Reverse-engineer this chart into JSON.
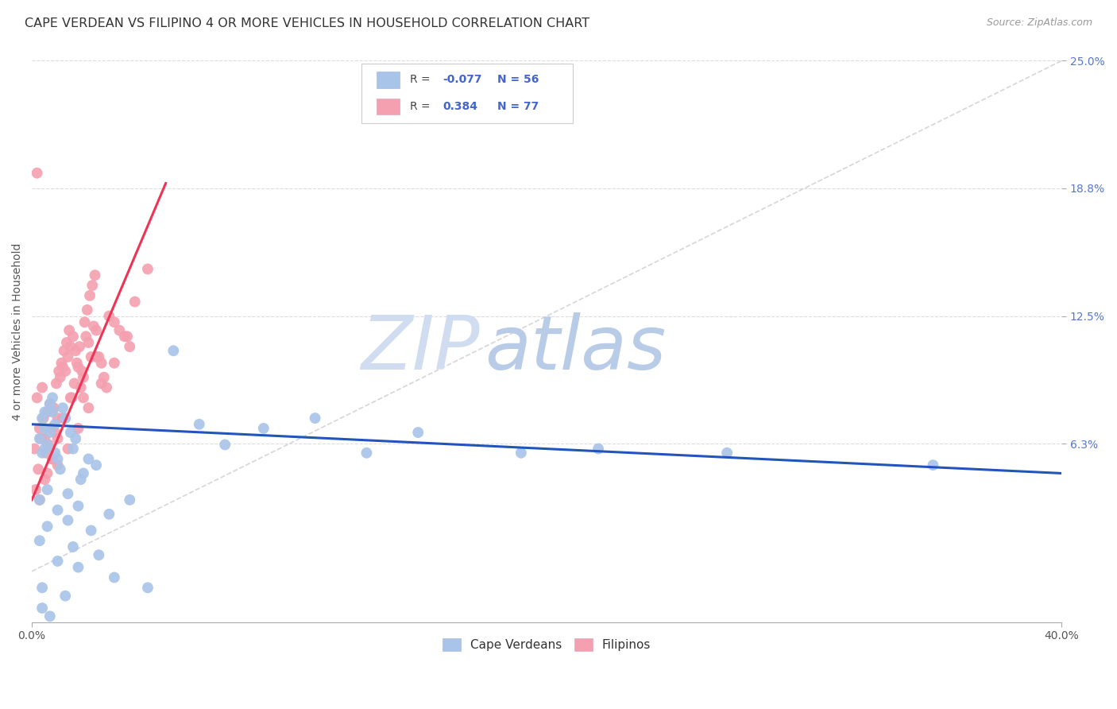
{
  "title": "CAPE VERDEAN VS FILIPINO 4 OR MORE VEHICLES IN HOUSEHOLD CORRELATION CHART",
  "source": "Source: ZipAtlas.com",
  "ylabel": "4 or more Vehicles in Household",
  "xlim": [
    0.0,
    40.0
  ],
  "ylim": [
    -2.5,
    26.0
  ],
  "yticks": [
    6.25,
    12.5,
    18.75,
    25.0
  ],
  "ytick_labels": [
    "6.3%",
    "12.5%",
    "18.8%",
    "25.0%"
  ],
  "background_color": "#ffffff",
  "watermark_zip": "ZIP",
  "watermark_atlas": "atlas",
  "watermark_color_zip": "#d0dcf0",
  "watermark_color_atlas": "#b8cce8",
  "grid_color": "#dddddd",
  "blue_color": "#a8c4e8",
  "pink_color": "#f4a0b0",
  "blue_line_color": "#2255bb",
  "pink_line_color": "#ee3355",
  "ref_line_color": "#cccccc",
  "legend_blue_label": "Cape Verdeans",
  "legend_pink_label": "Filipinos",
  "R_blue": -0.077,
  "N_blue": 56,
  "R_pink": 0.384,
  "N_pink": 77,
  "blue_scatter_x": [
    0.3,
    0.5,
    0.4,
    0.8,
    1.0,
    0.6,
    0.9,
    1.2,
    0.7,
    1.1,
    0.5,
    0.3,
    0.6,
    1.4,
    1.8,
    2.0,
    1.6,
    0.4,
    0.7,
    0.5,
    0.8,
    1.3,
    1.5,
    0.9,
    1.7,
    2.2,
    0.3,
    0.6,
    1.0,
    1.4,
    1.9,
    2.5,
    0.4,
    1.0,
    1.6,
    2.3,
    3.0,
    3.8,
    5.5,
    6.5,
    9.0,
    11.0,
    15.0,
    22.0,
    27.0,
    35.0,
    0.4,
    0.7,
    1.3,
    1.8,
    2.6,
    3.2,
    4.5,
    7.5,
    13.0,
    19.0
  ],
  "blue_scatter_y": [
    6.5,
    7.0,
    5.8,
    7.8,
    5.5,
    6.2,
    7.2,
    8.0,
    6.8,
    5.0,
    6.0,
    3.5,
    4.0,
    2.5,
    3.2,
    4.8,
    6.0,
    7.5,
    8.2,
    7.8,
    8.5,
    7.5,
    6.8,
    5.8,
    6.5,
    5.5,
    1.5,
    2.2,
    3.0,
    3.8,
    4.5,
    5.2,
    -0.8,
    0.5,
    1.2,
    2.0,
    2.8,
    3.5,
    10.8,
    7.2,
    7.0,
    7.5,
    6.8,
    6.0,
    5.8,
    5.2,
    -1.8,
    -2.2,
    -1.2,
    0.2,
    0.8,
    -0.3,
    -0.8,
    6.2,
    5.8,
    5.8
  ],
  "pink_scatter_x": [
    0.1,
    0.2,
    0.3,
    0.4,
    0.5,
    0.6,
    0.7,
    0.8,
    0.9,
    1.0,
    1.1,
    1.2,
    1.3,
    1.4,
    1.5,
    1.6,
    1.7,
    1.8,
    1.9,
    2.0,
    2.1,
    2.2,
    2.3,
    2.4,
    2.5,
    2.6,
    2.7,
    2.8,
    2.9,
    3.0,
    3.2,
    3.4,
    3.6,
    3.8,
    4.0,
    4.5,
    0.15,
    0.25,
    0.35,
    0.45,
    0.55,
    0.65,
    0.75,
    0.85,
    0.95,
    1.05,
    1.15,
    1.25,
    1.35,
    1.45,
    1.55,
    1.65,
    1.75,
    1.85,
    1.95,
    2.05,
    2.15,
    2.25,
    2.35,
    2.45,
    0.3,
    0.5,
    0.8,
    1.0,
    1.2,
    1.5,
    2.0,
    2.5,
    0.6,
    1.0,
    1.4,
    1.8,
    2.2,
    2.7,
    3.2,
    3.7,
    0.2
  ],
  "pink_scatter_y": [
    6.0,
    8.5,
    7.0,
    9.0,
    6.5,
    7.8,
    8.2,
    5.5,
    6.8,
    7.5,
    9.5,
    10.0,
    9.8,
    10.5,
    11.0,
    11.5,
    10.8,
    10.0,
    9.0,
    8.5,
    11.5,
    11.2,
    10.5,
    12.0,
    11.8,
    10.5,
    10.2,
    9.5,
    9.0,
    12.5,
    12.2,
    11.8,
    11.5,
    11.0,
    13.2,
    14.8,
    4.0,
    5.0,
    6.5,
    7.5,
    5.8,
    6.2,
    7.0,
    8.0,
    9.2,
    9.8,
    10.2,
    10.8,
    11.2,
    11.8,
    8.5,
    9.2,
    10.2,
    11.0,
    9.8,
    12.2,
    12.8,
    13.5,
    14.0,
    14.5,
    3.5,
    4.5,
    5.5,
    6.5,
    7.5,
    8.5,
    9.5,
    10.5,
    4.8,
    5.2,
    6.0,
    7.0,
    8.0,
    9.2,
    10.2,
    11.5,
    19.5
  ],
  "blue_trend_x": [
    0.0,
    40.0
  ],
  "blue_trend_y": [
    7.2,
    4.8
  ],
  "pink_trend_x": [
    0.0,
    5.2
  ],
  "pink_trend_y": [
    3.5,
    19.0
  ]
}
